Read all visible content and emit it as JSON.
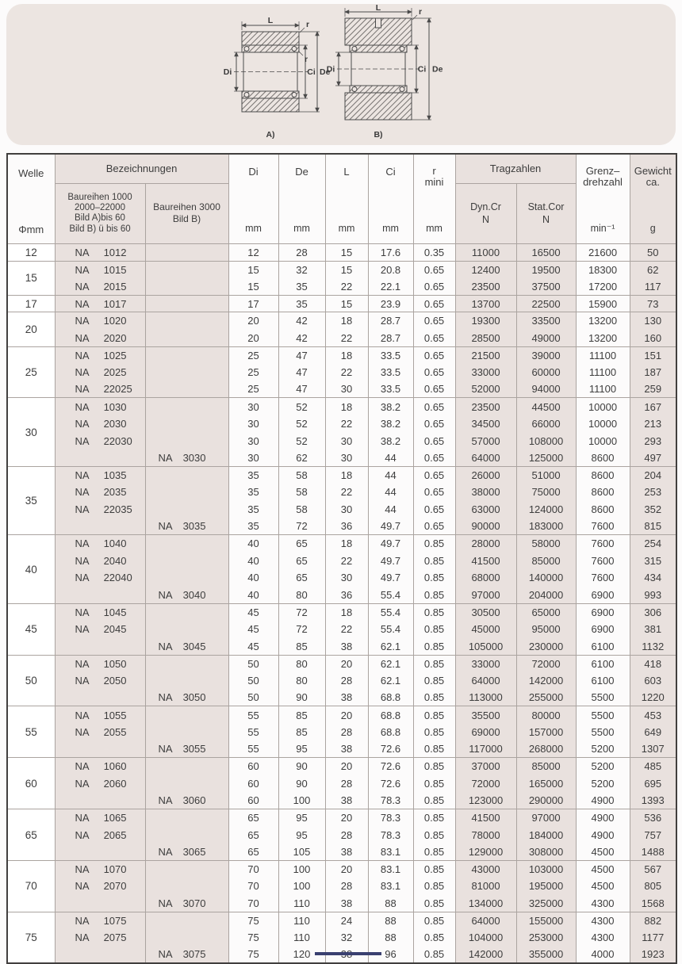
{
  "colors": {
    "panel": "#ece5e1",
    "shade": "#e9e1de",
    "border": "#aba4a0",
    "outer_border": "#413f3e",
    "text": "#3d3d3d",
    "footer_bar": "#3a4070"
  },
  "diagram": {
    "label_a": "A)",
    "label_b": "B)",
    "dim_l": "L",
    "dim_r": "r",
    "dim_di": "Di",
    "dim_ci": "Ci",
    "dim_de": "De"
  },
  "table": {
    "na_prefix": "NA",
    "header": {
      "welle": "Welle",
      "welle_unit": "Φmm",
      "bezeichnungen": "Bezeichnungen",
      "baureihen_a": [
        "Baureihen 1000",
        "2000–22000",
        "Bild A)bis 60",
        "Bild B) ü bis 60"
      ],
      "baureihen_b": [
        "Baureihen 3000",
        "Bild B)"
      ],
      "di": "Di",
      "de": "De",
      "l": "L",
      "ci": "Ci",
      "r": "r",
      "r_sub": "mini",
      "unit_mm": "mm",
      "tragzahlen": "Tragzahlen",
      "dyn_cr": "Dyn.Cr",
      "stat_cor": "Stat.Cor",
      "n_unit": "N",
      "grenz_1": "Grenz–",
      "grenz_2": "drehzahl",
      "grenz_unit": "min⁻¹",
      "gewicht_1": "Gewicht",
      "gewicht_2": "ca.",
      "gewicht_unit": "g"
    },
    "groups": [
      {
        "welle": "12",
        "rows": [
          {
            "na1": "1012",
            "na2": "",
            "v": [
              "12",
              "28",
              "15",
              "17.6",
              "0.35",
              "11000",
              "16500",
              "21600",
              "50"
            ]
          }
        ]
      },
      {
        "welle": "15",
        "rows": [
          {
            "na1": "1015",
            "na2": "",
            "v": [
              "15",
              "32",
              "15",
              "20.8",
              "0.65",
              "12400",
              "19500",
              "18300",
              "62"
            ]
          },
          {
            "na1": "2015",
            "na2": "",
            "v": [
              "15",
              "35",
              "22",
              "22.1",
              "0.65",
              "23500",
              "37500",
              "17200",
              "117"
            ]
          }
        ]
      },
      {
        "welle": "17",
        "rows": [
          {
            "na1": "1017",
            "na2": "",
            "v": [
              "17",
              "35",
              "15",
              "23.9",
              "0.65",
              "13700",
              "22500",
              "15900",
              "73"
            ]
          }
        ]
      },
      {
        "welle": "20",
        "rows": [
          {
            "na1": "1020",
            "na2": "",
            "v": [
              "20",
              "42",
              "18",
              "28.7",
              "0.65",
              "19300",
              "33500",
              "13200",
              "130"
            ]
          },
          {
            "na1": "2020",
            "na2": "",
            "v": [
              "20",
              "42",
              "22",
              "28.7",
              "0.65",
              "28500",
              "49000",
              "13200",
              "160"
            ]
          }
        ]
      },
      {
        "welle": "25",
        "rows": [
          {
            "na1": "1025",
            "na2": "",
            "v": [
              "25",
              "47",
              "18",
              "33.5",
              "0.65",
              "21500",
              "39000",
              "11100",
              "151"
            ]
          },
          {
            "na1": "2025",
            "na2": "",
            "v": [
              "25",
              "47",
              "22",
              "33.5",
              "0.65",
              "33000",
              "60000",
              "11100",
              "187"
            ]
          },
          {
            "na1": "22025",
            "na2": "",
            "v": [
              "25",
              "47",
              "30",
              "33.5",
              "0.65",
              "52000",
              "94000",
              "11100",
              "259"
            ]
          }
        ]
      },
      {
        "welle": "30",
        "rows": [
          {
            "na1": "1030",
            "na2": "",
            "v": [
              "30",
              "52",
              "18",
              "38.2",
              "0.65",
              "23500",
              "44500",
              "10000",
              "167"
            ]
          },
          {
            "na1": "2030",
            "na2": "",
            "v": [
              "30",
              "52",
              "22",
              "38.2",
              "0.65",
              "34500",
              "66000",
              "10000",
              "213"
            ]
          },
          {
            "na1": "22030",
            "na2": "",
            "v": [
              "30",
              "52",
              "30",
              "38.2",
              "0.65",
              "57000",
              "108000",
              "10000",
              "293"
            ]
          },
          {
            "na1": "",
            "na2": "3030",
            "v": [
              "30",
              "62",
              "30",
              "44",
              "0.65",
              "64000",
              "125000",
              "8600",
              "497"
            ]
          }
        ]
      },
      {
        "welle": "35",
        "rows": [
          {
            "na1": "1035",
            "na2": "",
            "v": [
              "35",
              "58",
              "18",
              "44",
              "0.65",
              "26000",
              "51000",
              "8600",
              "204"
            ]
          },
          {
            "na1": "2035",
            "na2": "",
            "v": [
              "35",
              "58",
              "22",
              "44",
              "0.65",
              "38000",
              "75000",
              "8600",
              "253"
            ]
          },
          {
            "na1": "22035",
            "na2": "",
            "v": [
              "35",
              "58",
              "30",
              "44",
              "0.65",
              "63000",
              "124000",
              "8600",
              "352"
            ]
          },
          {
            "na1": "",
            "na2": "3035",
            "v": [
              "35",
              "72",
              "36",
              "49.7",
              "0.65",
              "90000",
              "183000",
              "7600",
              "815"
            ]
          }
        ]
      },
      {
        "welle": "40",
        "rows": [
          {
            "na1": "1040",
            "na2": "",
            "v": [
              "40",
              "65",
              "18",
              "49.7",
              "0.85",
              "28000",
              "58000",
              "7600",
              "254"
            ]
          },
          {
            "na1": "2040",
            "na2": "",
            "v": [
              "40",
              "65",
              "22",
              "49.7",
              "0.85",
              "41500",
              "85000",
              "7600",
              "315"
            ]
          },
          {
            "na1": "22040",
            "na2": "",
            "v": [
              "40",
              "65",
              "30",
              "49.7",
              "0.85",
              "68000",
              "140000",
              "7600",
              "434"
            ]
          },
          {
            "na1": "",
            "na2": "3040",
            "v": [
              "40",
              "80",
              "36",
              "55.4",
              "0.85",
              "97000",
              "204000",
              "6900",
              "993"
            ]
          }
        ]
      },
      {
        "welle": "45",
        "rows": [
          {
            "na1": "1045",
            "na2": "",
            "v": [
              "45",
              "72",
              "18",
              "55.4",
              "0.85",
              "30500",
              "65000",
              "6900",
              "306"
            ]
          },
          {
            "na1": "2045",
            "na2": "",
            "v": [
              "45",
              "72",
              "22",
              "55.4",
              "0.85",
              "45000",
              "95000",
              "6900",
              "381"
            ]
          },
          {
            "na1": "",
            "na2": "3045",
            "v": [
              "45",
              "85",
              "38",
              "62.1",
              "0.85",
              "105000",
              "230000",
              "6100",
              "1132"
            ]
          }
        ]
      },
      {
        "welle": "50",
        "rows": [
          {
            "na1": "1050",
            "na2": "",
            "v": [
              "50",
              "80",
              "20",
              "62.1",
              "0.85",
              "33000",
              "72000",
              "6100",
              "418"
            ]
          },
          {
            "na1": "2050",
            "na2": "",
            "v": [
              "50",
              "80",
              "28",
              "62.1",
              "0.85",
              "64000",
              "142000",
              "6100",
              "603"
            ]
          },
          {
            "na1": "",
            "na2": "3050",
            "v": [
              "50",
              "90",
              "38",
              "68.8",
              "0.85",
              "113000",
              "255000",
              "5500",
              "1220"
            ]
          }
        ]
      },
      {
        "welle": "55",
        "rows": [
          {
            "na1": "1055",
            "na2": "",
            "v": [
              "55",
              "85",
              "20",
              "68.8",
              "0.85",
              "35500",
              "80000",
              "5500",
              "453"
            ]
          },
          {
            "na1": "2055",
            "na2": "",
            "v": [
              "55",
              "85",
              "28",
              "68.8",
              "0.85",
              "69000",
              "157000",
              "5500",
              "649"
            ]
          },
          {
            "na1": "",
            "na2": "3055",
            "v": [
              "55",
              "95",
              "38",
              "72.6",
              "0.85",
              "117000",
              "268000",
              "5200",
              "1307"
            ]
          }
        ]
      },
      {
        "welle": "60",
        "rows": [
          {
            "na1": "1060",
            "na2": "",
            "v": [
              "60",
              "90",
              "20",
              "72.6",
              "0.85",
              "37000",
              "85000",
              "5200",
              "485"
            ]
          },
          {
            "na1": "2060",
            "na2": "",
            "v": [
              "60",
              "90",
              "28",
              "72.6",
              "0.85",
              "72000",
              "165000",
              "5200",
              "695"
            ]
          },
          {
            "na1": "",
            "na2": "3060",
            "v": [
              "60",
              "100",
              "38",
              "78.3",
              "0.85",
              "123000",
              "290000",
              "4900",
              "1393"
            ]
          }
        ]
      },
      {
        "welle": "65",
        "rows": [
          {
            "na1": "1065",
            "na2": "",
            "v": [
              "65",
              "95",
              "20",
              "78.3",
              "0.85",
              "41500",
              "97000",
              "4900",
              "536"
            ]
          },
          {
            "na1": "2065",
            "na2": "",
            "v": [
              "65",
              "95",
              "28",
              "78.3",
              "0.85",
              "78000",
              "184000",
              "4900",
              "757"
            ]
          },
          {
            "na1": "",
            "na2": "3065",
            "v": [
              "65",
              "105",
              "38",
              "83.1",
              "0.85",
              "129000",
              "308000",
              "4500",
              "1488"
            ]
          }
        ]
      },
      {
        "welle": "70",
        "rows": [
          {
            "na1": "1070",
            "na2": "",
            "v": [
              "70",
              "100",
              "20",
              "83.1",
              "0.85",
              "43000",
              "103000",
              "4500",
              "567"
            ]
          },
          {
            "na1": "2070",
            "na2": "",
            "v": [
              "70",
              "100",
              "28",
              "83.1",
              "0.85",
              "81000",
              "195000",
              "4500",
              "805"
            ]
          },
          {
            "na1": "",
            "na2": "3070",
            "v": [
              "70",
              "110",
              "38",
              "88",
              "0.85",
              "134000",
              "325000",
              "4300",
              "1568"
            ]
          }
        ]
      },
      {
        "welle": "75",
        "rows": [
          {
            "na1": "1075",
            "na2": "",
            "v": [
              "75",
              "110",
              "24",
              "88",
              "0.85",
              "64000",
              "155000",
              "4300",
              "882"
            ]
          },
          {
            "na1": "2075",
            "na2": "",
            "v": [
              "75",
              "110",
              "32",
              "88",
              "0.85",
              "104000",
              "253000",
              "4300",
              "1177"
            ]
          },
          {
            "na1": "",
            "na2": "3075",
            "v": [
              "75",
              "120",
              "38",
              "96",
              "0.85",
              "142000",
              "355000",
              "4000",
              "1923"
            ]
          }
        ]
      }
    ]
  }
}
